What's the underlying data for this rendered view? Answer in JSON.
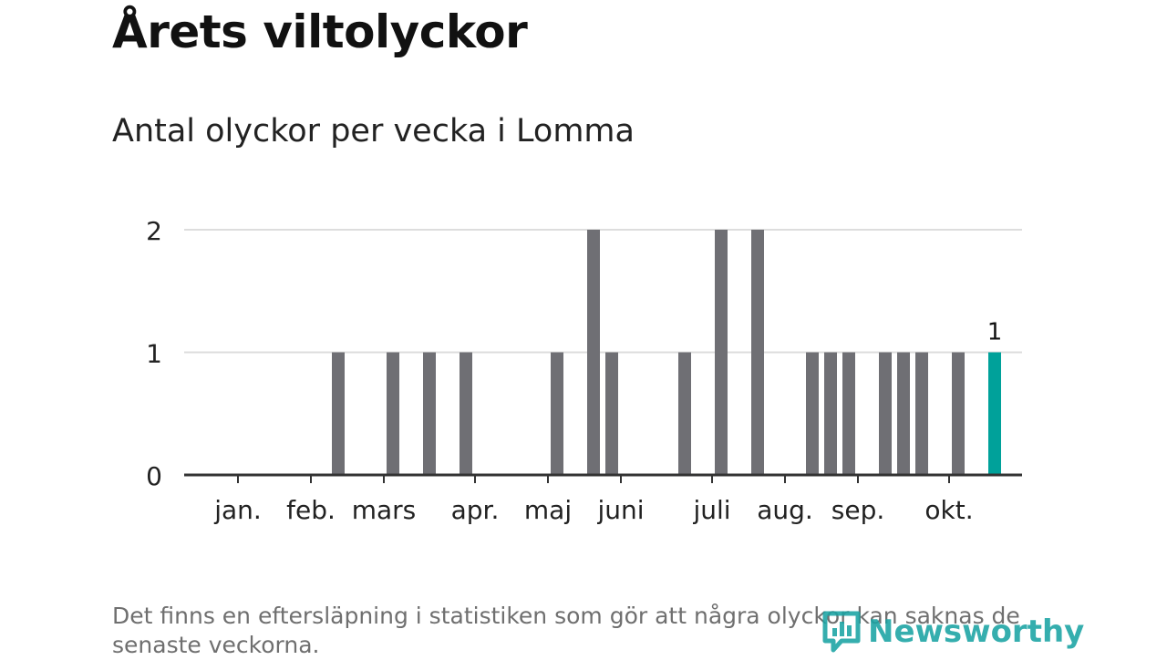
{
  "title": "Årets viltolyckor",
  "subtitle": "Antal olyckor per vecka i Lomma",
  "footnote": "Det finns en eftersläpning i statistiken som gör att några olyckor kan saknas de senaste veckorna.",
  "logo": {
    "text": "Newsworthy",
    "icon": "newsworthy-logo-icon",
    "color": "#1aa3a3"
  },
  "colors": {
    "bar": "#6f6f74",
    "highlight": "#00a19a",
    "grid": "#dddddd",
    "axis": "#333333"
  },
  "chart_data": {
    "type": "bar",
    "title": "Antal olyckor per vecka i Lomma",
    "xlabel": "",
    "ylabel": "",
    "x_unit": "week",
    "weeks": [
      1,
      2,
      3,
      4,
      5,
      6,
      7,
      8,
      9,
      10,
      11,
      12,
      13,
      14,
      15,
      16,
      17,
      18,
      19,
      20,
      21,
      22,
      23,
      24,
      25,
      26,
      27,
      28,
      29,
      30,
      31,
      32,
      33,
      34,
      35,
      36,
      37,
      38,
      39,
      40,
      41,
      42,
      43,
      44
    ],
    "values": [
      0,
      0,
      0,
      0,
      0,
      0,
      0,
      1,
      0,
      0,
      1,
      0,
      1,
      0,
      1,
      0,
      0,
      0,
      0,
      1,
      0,
      2,
      1,
      0,
      0,
      0,
      1,
      0,
      2,
      0,
      2,
      0,
      0,
      1,
      1,
      1,
      0,
      1,
      1,
      1,
      0,
      1,
      0,
      1
    ],
    "highlight_week": 44,
    "highlight_label": "1",
    "ylim": [
      0,
      2
    ],
    "yticks": [
      0,
      1,
      2
    ],
    "month_ticks": [
      {
        "label": "jan.",
        "week": 2.5
      },
      {
        "label": "feb.",
        "week": 6.5
      },
      {
        "label": "mars",
        "week": 10.5
      },
      {
        "label": "apr.",
        "week": 15.5
      },
      {
        "label": "maj",
        "week": 19.5
      },
      {
        "label": "juni",
        "week": 23.5
      },
      {
        "label": "juli",
        "week": 28.5
      },
      {
        "label": "aug.",
        "week": 32.5
      },
      {
        "label": "sep.",
        "week": 36.5
      },
      {
        "label": "okt.",
        "week": 41.5
      }
    ],
    "grid": true,
    "legend": "none"
  }
}
